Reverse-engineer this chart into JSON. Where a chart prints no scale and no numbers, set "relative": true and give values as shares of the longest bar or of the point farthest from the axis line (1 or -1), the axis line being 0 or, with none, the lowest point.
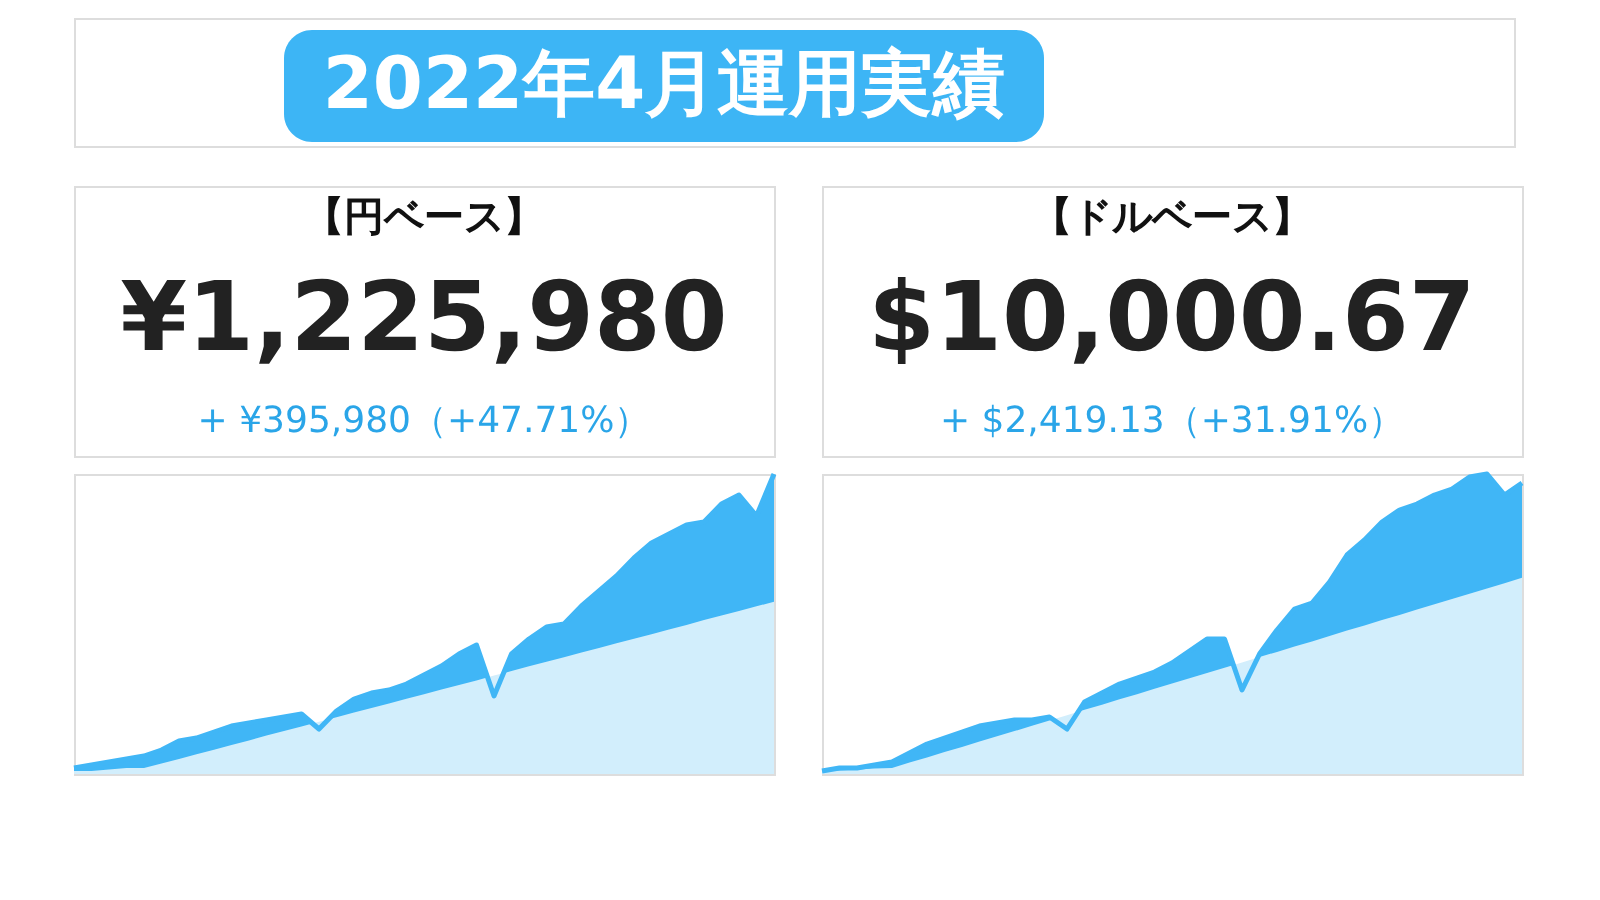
{
  "chart_data": [
    {
      "type": "other",
      "title": "2022年4月運用実績",
      "color": "#3db5f5"
    },
    {
      "type": "area",
      "relative": true,
      "title": "【円ベース】",
      "annotations": [
        "¥1,225,980",
        "+ ¥395,980（+47.71%）"
      ],
      "categories": [
        null,
        null,
        null,
        null,
        null,
        null,
        null,
        null,
        null,
        null,
        null,
        null,
        null,
        null,
        null,
        null,
        null,
        null,
        null,
        null,
        null,
        null,
        null,
        null,
        null,
        null,
        null,
        null,
        null,
        null,
        null,
        null,
        null,
        null,
        null,
        null,
        null,
        null,
        null,
        null,
        null
      ],
      "series": [
        {
          "color": "#40b6f6",
          "values": [
            0.02,
            0.03,
            0.04,
            0.05,
            0.06,
            0.08,
            0.11,
            0.12,
            0.14,
            0.16,
            0.17,
            0.18,
            0.19,
            0.2,
            0.15,
            0.21,
            0.25,
            0.27,
            0.28,
            0.3,
            0.33,
            0.36,
            0.4,
            0.43,
            0.26,
            0.4,
            0.45,
            0.49,
            0.5,
            0.56,
            0.61,
            0.66,
            0.72,
            0.77,
            0.8,
            0.83,
            0.84,
            0.9,
            0.93,
            0.86,
            1.0
          ]
        },
        {
          "color": "#d2eefc",
          "values": [
            0.01,
            0.01,
            0.015,
            0.02,
            0.02,
            0.035,
            0.05,
            0.066,
            0.081,
            0.097,
            0.112,
            0.128,
            0.143,
            0.158,
            0.174,
            0.189,
            0.205,
            0.22,
            0.235,
            0.251,
            0.266,
            0.282,
            0.297,
            0.312,
            0.328,
            0.343,
            0.359,
            0.374,
            0.389,
            0.405,
            0.42,
            0.436,
            0.451,
            0.466,
            0.482,
            0.497,
            0.513,
            0.528,
            0.543,
            0.559,
            0.574
          ]
        }
      ]
    },
    {
      "type": "area",
      "relative": true,
      "title": "【ドルベース】",
      "annotations": [
        "$10,000.67",
        "+ $2,419.13（+31.91%）"
      ],
      "categories": [
        null,
        null,
        null,
        null,
        null,
        null,
        null,
        null,
        null,
        null,
        null,
        null,
        null,
        null,
        null,
        null,
        null,
        null,
        null,
        null,
        null,
        null,
        null,
        null,
        null,
        null,
        null,
        null,
        null,
        null,
        null,
        null,
        null,
        null,
        null,
        null,
        null,
        null,
        null,
        null,
        null
      ],
      "series": [
        {
          "color": "#40b6f6",
          "values": [
            0.01,
            0.02,
            0.02,
            0.03,
            0.04,
            0.07,
            0.1,
            0.12,
            0.14,
            0.16,
            0.17,
            0.18,
            0.18,
            0.19,
            0.15,
            0.24,
            0.27,
            0.3,
            0.32,
            0.34,
            0.37,
            0.41,
            0.45,
            0.45,
            0.28,
            0.4,
            0.48,
            0.55,
            0.57,
            0.64,
            0.73,
            0.78,
            0.84,
            0.88,
            0.9,
            0.93,
            0.95,
            0.99,
            1.0,
            0.93,
            0.97
          ]
        },
        {
          "color": "#d2eefc",
          "values": [
            0.01,
            0.012,
            0.015,
            0.018,
            0.02,
            0.038,
            0.055,
            0.073,
            0.09,
            0.108,
            0.126,
            0.143,
            0.161,
            0.178,
            0.196,
            0.214,
            0.231,
            0.249,
            0.266,
            0.284,
            0.302,
            0.319,
            0.337,
            0.354,
            0.372,
            0.39,
            0.407,
            0.425,
            0.442,
            0.46,
            0.478,
            0.495,
            0.513,
            0.53,
            0.548,
            0.566,
            0.583,
            0.601,
            0.618,
            0.636,
            0.654
          ]
        }
      ]
    }
  ]
}
